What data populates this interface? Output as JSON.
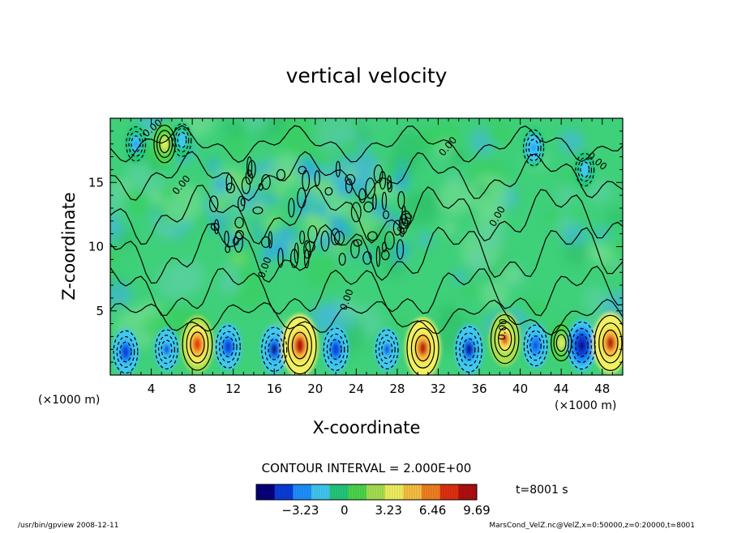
{
  "chart_data": {
    "type": "heatmap",
    "title": "vertical velocity",
    "xlabel": "X-coordinate",
    "ylabel": "Z-coordinate",
    "x_unit": "(×1000 m)",
    "x_unit_left": "(×1000 m)",
    "xlim": [
      0,
      50
    ],
    "ylim": [
      0,
      20
    ],
    "x_ticks": [
      4,
      8,
      12,
      16,
      20,
      24,
      28,
      32,
      36,
      40,
      44,
      48
    ],
    "y_ticks": [
      5,
      10,
      15
    ],
    "contour_label": "0.00",
    "contour_interval_text": "CONTOUR INTERVAL = 2.000E+00",
    "time_text": "t=8001 s",
    "colorbar": {
      "range": [
        -6.46,
        9.69
      ],
      "ticks": [
        -3.23,
        0,
        3.23,
        6.46,
        9.69
      ],
      "tick_labels": [
        "−3.23",
        "0",
        "3.23",
        "6.46",
        "9.69"
      ],
      "colors": [
        "#08007a",
        "#0a3cd8",
        "#1e90ff",
        "#40c8f0",
        "#22c87a",
        "#4cd64c",
        "#a8e050",
        "#f0f060",
        "#f8c040",
        "#f08020",
        "#e03010",
        "#b01010"
      ]
    },
    "features": [
      {
        "x": 1.5,
        "z": 1.8,
        "w": -5.0
      },
      {
        "x": 5.5,
        "z": 2.0,
        "w": -4.0
      },
      {
        "x": 8.5,
        "z": 2.4,
        "w": 8.0
      },
      {
        "x": 11.5,
        "z": 2.2,
        "w": -5.0
      },
      {
        "x": 16.0,
        "z": 2.0,
        "w": -5.5
      },
      {
        "x": 18.5,
        "z": 2.3,
        "w": 9.5
      },
      {
        "x": 22.0,
        "z": 2.0,
        "w": -5.0
      },
      {
        "x": 27.0,
        "z": 2.0,
        "w": -4.0
      },
      {
        "x": 30.5,
        "z": 2.1,
        "w": 9.0
      },
      {
        "x": 35.0,
        "z": 2.0,
        "w": -6.0
      },
      {
        "x": 38.5,
        "z": 2.8,
        "w": 7.0
      },
      {
        "x": 41.5,
        "z": 2.3,
        "w": -4.5
      },
      {
        "x": 44.0,
        "z": 2.5,
        "w": 3.0
      },
      {
        "x": 46.0,
        "z": 2.3,
        "w": -6.5
      },
      {
        "x": 48.8,
        "z": 2.5,
        "w": 9.0
      },
      {
        "x": 5.3,
        "z": 18.0,
        "w": 3.5
      },
      {
        "x": 2.5,
        "z": 18.0,
        "w": -2.5
      },
      {
        "x": 7.0,
        "z": 18.3,
        "w": -2.0
      },
      {
        "x": 41.3,
        "z": 17.7,
        "w": -3.0
      },
      {
        "x": 46.3,
        "z": 16.0,
        "w": -2.0
      }
    ]
  },
  "footer": {
    "left": "/usr/bin/gpview   2008-12-11",
    "right": "MarsCond_VelZ.nc@VelZ,x=0:50000,z=0:20000,t=8001"
  }
}
